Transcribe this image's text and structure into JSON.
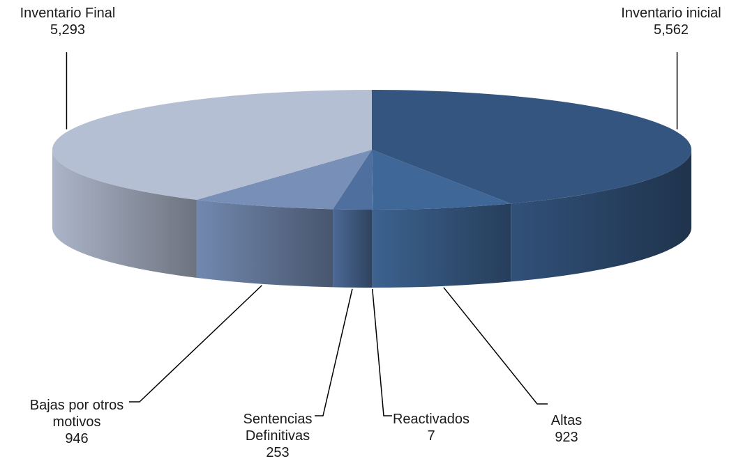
{
  "chart_data": {
    "type": "pie",
    "variant": "3d",
    "title": "",
    "categories": [
      "Inventario inicial",
      "Altas",
      "Reactivados",
      "Sentencias Definitivas",
      "Bajas por otros motivos",
      "Inventario Final"
    ],
    "values": [
      5562,
      923,
      7,
      253,
      946,
      5293
    ],
    "value_labels": [
      "5,562",
      "923",
      "7",
      "253",
      "946",
      "5,293"
    ],
    "label_lines": [
      [
        "Inventario inicial"
      ],
      [
        "Altas"
      ],
      [
        "Reactivados"
      ],
      [
        "Sentencias",
        "Definitivas"
      ],
      [
        "Bajas por otros",
        "motivos"
      ],
      [
        "Inventario Final"
      ]
    ],
    "colors": [
      "#34557f",
      "#3f6797",
      "#4a7cba",
      "#4f6f9e",
      "#7890b8",
      "#b5bfd4"
    ],
    "legend": "none",
    "data_labels": "outside-with-leader-lines"
  }
}
